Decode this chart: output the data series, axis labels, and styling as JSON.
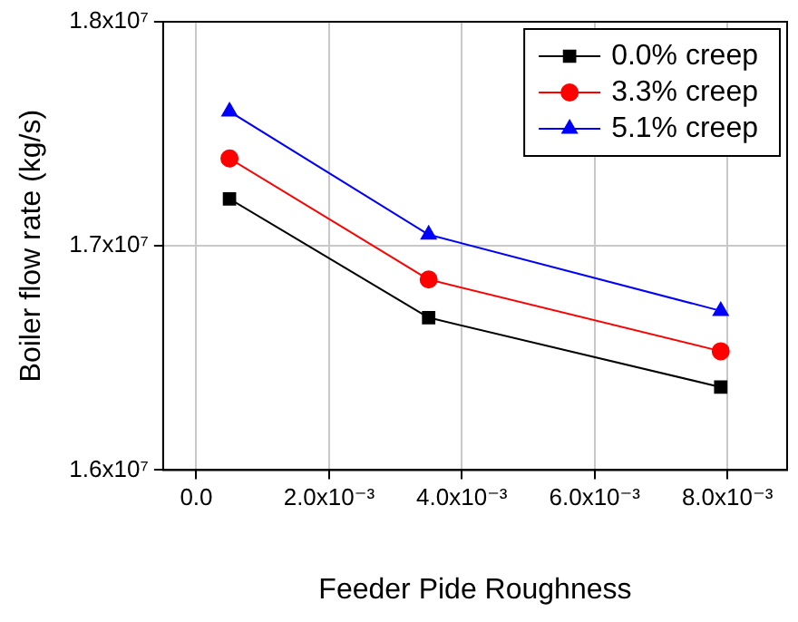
{
  "chart_data": {
    "type": "line",
    "xlabel": "Feeder Pide Roughness",
    "ylabel": "Boiler flow rate (kg/s)",
    "x": [
      0.0005,
      0.0035,
      0.0079
    ],
    "series": [
      {
        "name": "0.0% creep",
        "color": "#000000",
        "marker": "square",
        "values": [
          17210000,
          16680000,
          16370000
        ]
      },
      {
        "name": "3.3% creep",
        "color": "#ff0000",
        "marker": "circle",
        "values": [
          17390000,
          16850000,
          16530000
        ]
      },
      {
        "name": "5.1% creep",
        "color": "#0000ff",
        "marker": "triangle",
        "values": [
          17600000,
          17050000,
          16710000
        ]
      }
    ],
    "xlim": [
      -0.0005,
      0.0089
    ],
    "xticks": [
      {
        "value": 0,
        "label": "0.0"
      },
      {
        "value": 0.002,
        "label": "2.0x10⁻³"
      },
      {
        "value": 0.004,
        "label": "4.0x10⁻³"
      },
      {
        "value": 0.006,
        "label": "6.0x10⁻³"
      },
      {
        "value": 0.008,
        "label": "8.0x10⁻³"
      }
    ],
    "ylim": [
      16000000,
      18000000
    ],
    "yticks": [
      {
        "value": 16000000,
        "label": "1.6x10⁷"
      },
      {
        "value": 17000000,
        "label": "1.7x10⁷"
      },
      {
        "value": 18000000,
        "label": "1.8x10⁷"
      }
    ],
    "grid": true,
    "legend": "top right",
    "line_style": "solid"
  }
}
